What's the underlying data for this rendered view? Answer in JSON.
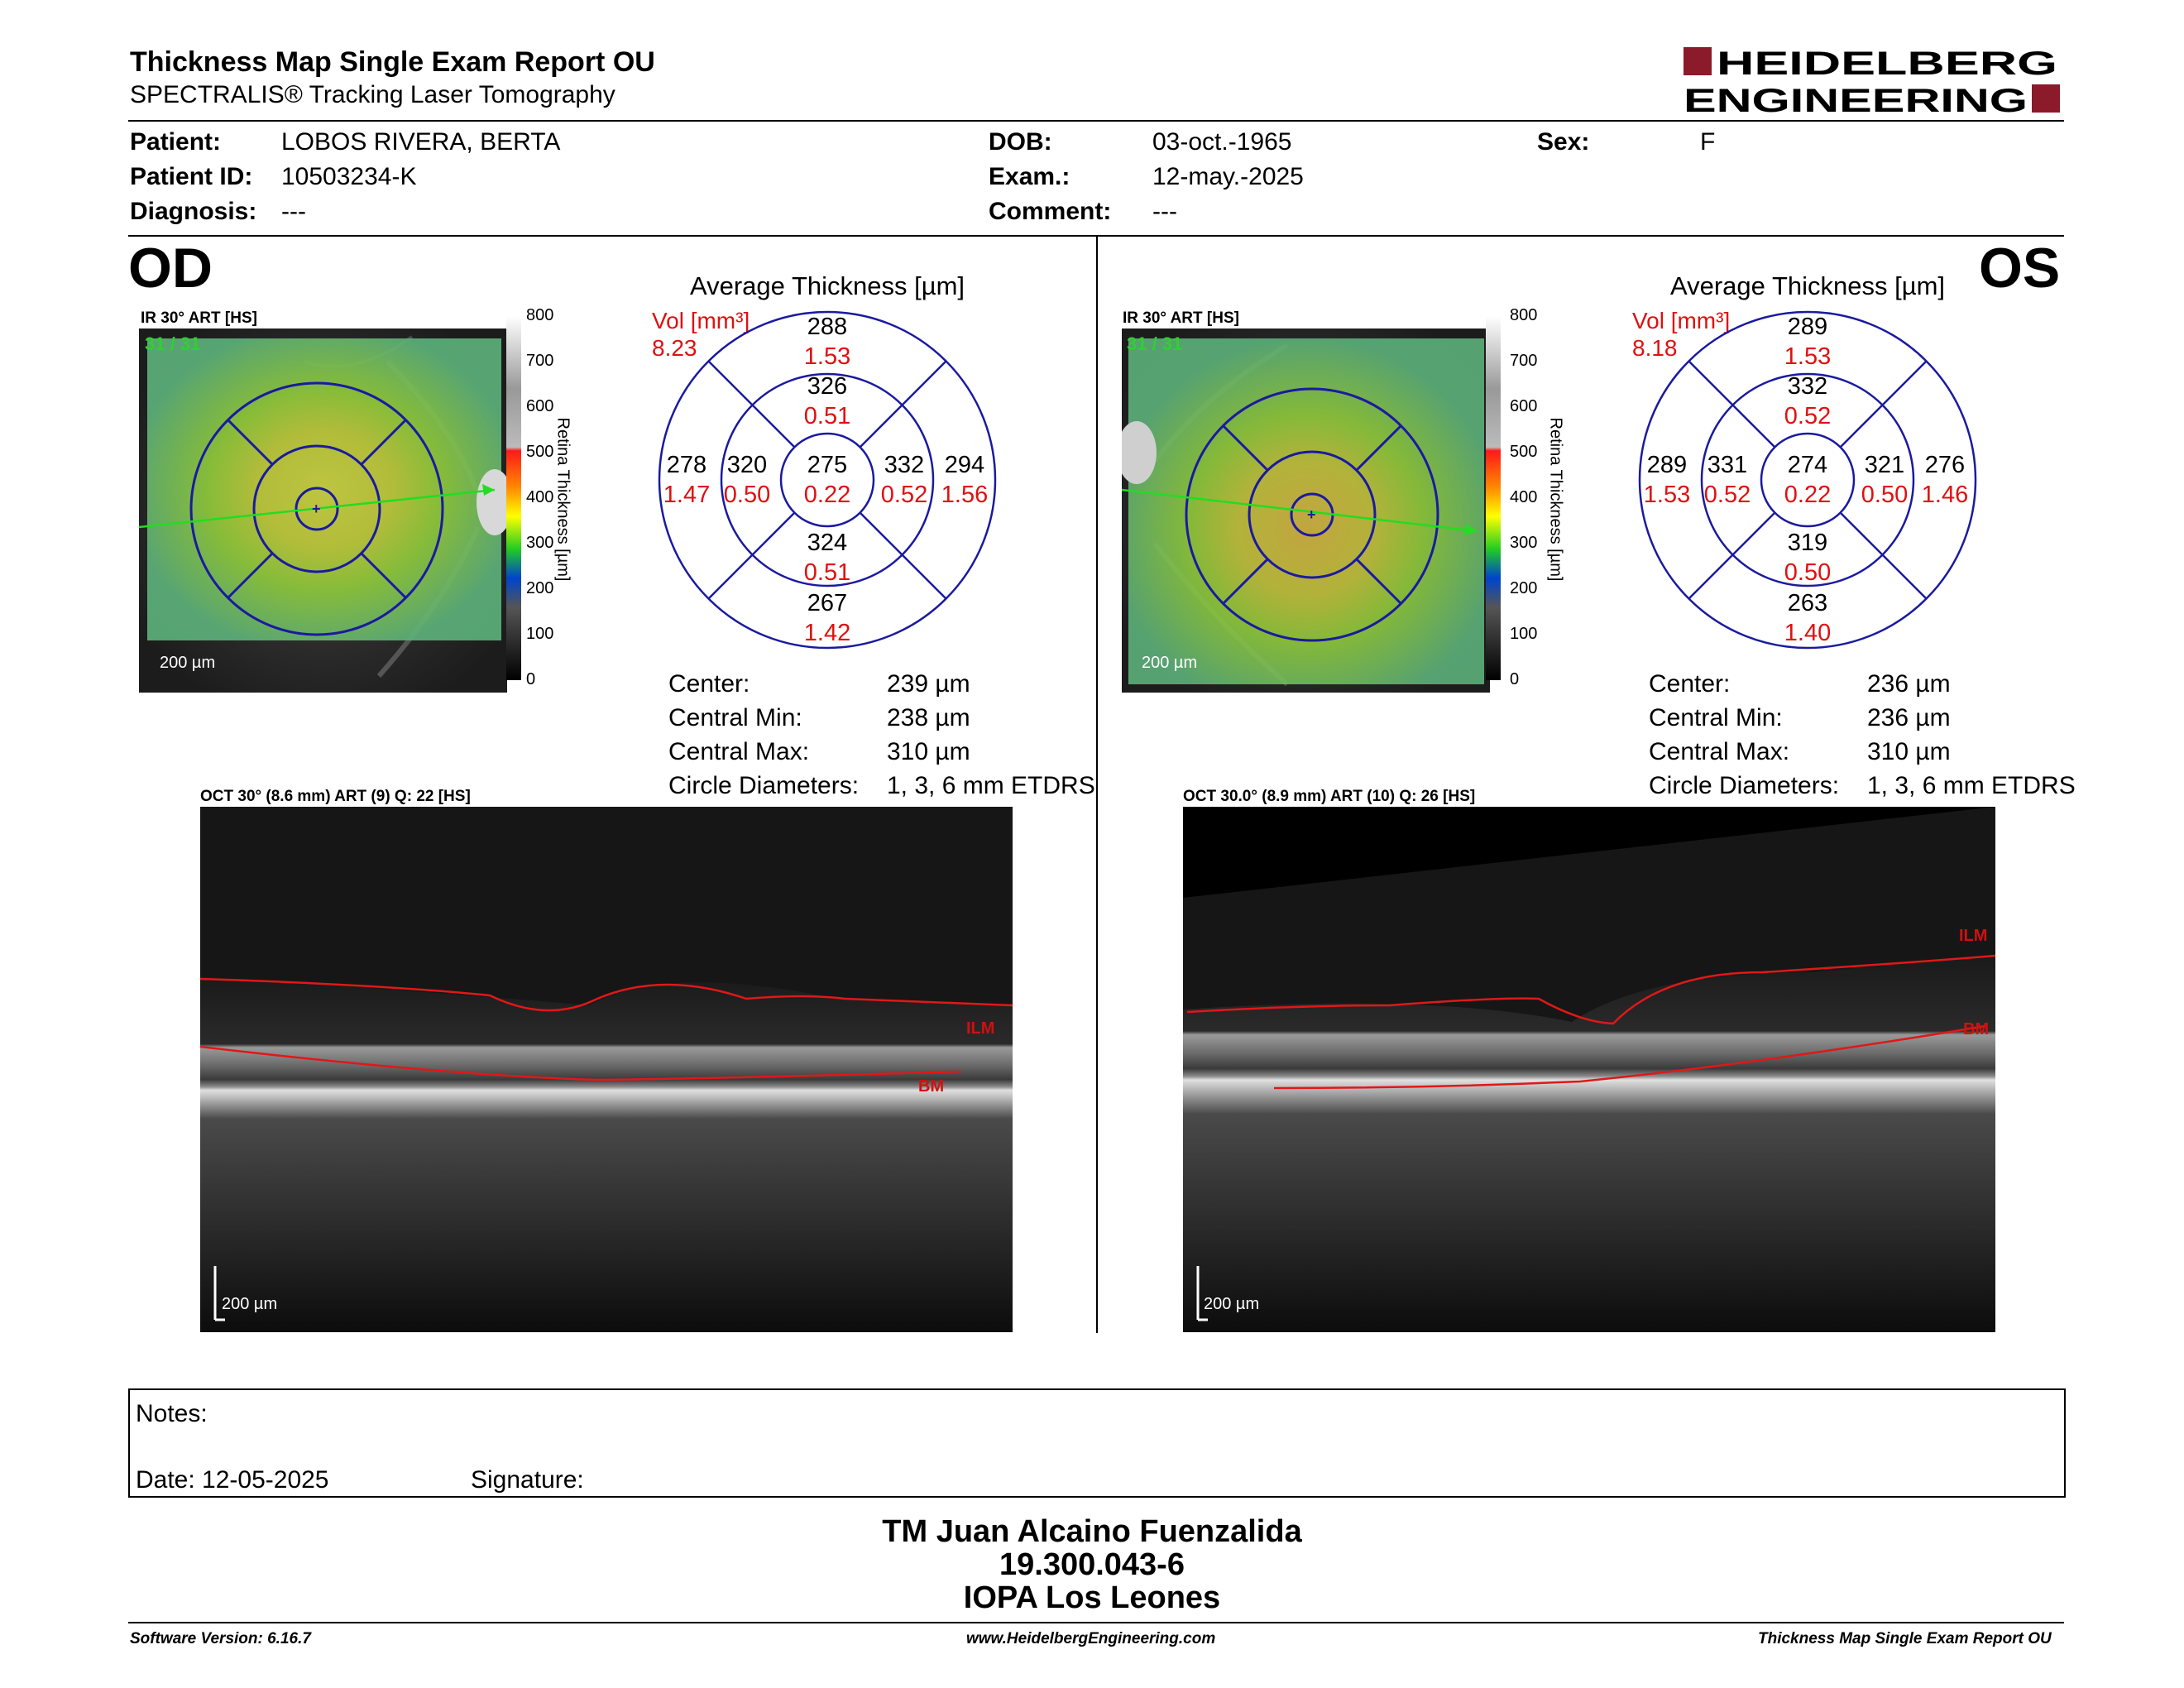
{
  "report": {
    "title": "Thickness Map Single Exam Report OU",
    "subtitle": "SPECTRALIS® Tracking Laser Tomography",
    "logo_line1": "HEIDELBERG",
    "logo_line2": "ENGINEERING"
  },
  "patient": {
    "patient_label": "Patient:",
    "patient_value": "LOBOS RIVERA, BERTA",
    "id_label": "Patient ID:",
    "id_value": "10503234-K",
    "diagnosis_label": "Diagnosis:",
    "diagnosis_value": "---",
    "dob_label": "DOB:",
    "dob_value": "03-oct.-1965",
    "exam_label": "Exam.:",
    "exam_value": "12-may.-2025",
    "comment_label": "Comment:",
    "comment_value": "---",
    "sex_label": "Sex:",
    "sex_value": "F"
  },
  "scale": {
    "ticks": [
      "800",
      "700",
      "600",
      "500",
      "400",
      "300",
      "200",
      "100",
      "0"
    ],
    "label": "Retina  Thickness [µm]"
  },
  "od": {
    "eye": "OD",
    "ir_label": "IR 30° ART [HS]",
    "ir_count": "31 / 31",
    "ir_scale": "200 µm",
    "avg_title": "Average Thickness [µm]",
    "vol_label": "Vol [mm³]",
    "vol_value": "8.23",
    "grid": {
      "outer_superior": [
        "288",
        "1.53"
      ],
      "inner_superior": [
        "326",
        "0.51"
      ],
      "outer_nasal_left": [
        "278",
        "1.47"
      ],
      "inner_left": [
        "320",
        "0.50"
      ],
      "center": [
        "275",
        "0.22"
      ],
      "inner_right": [
        "332",
        "0.52"
      ],
      "outer_right": [
        "294",
        "1.56"
      ],
      "inner_inferior": [
        "324",
        "0.51"
      ],
      "outer_inferior": [
        "267",
        "1.42"
      ]
    },
    "stats": {
      "center_label": "Center:",
      "center_value": "239 µm",
      "min_label": "Central Min:",
      "min_value": "238 µm",
      "max_label": "Central Max:",
      "max_value": "310 µm",
      "diam_label": "Circle Diameters:",
      "diam_value": "1, 3, 6 mm ETDRS"
    },
    "oct_label": "OCT 30° (8.6 mm) ART (9) Q: 22 [HS]",
    "oct_scale": "200 µm",
    "ilm": "ILM",
    "bm": "BM"
  },
  "os": {
    "eye": "OS",
    "ir_label": "IR 30° ART [HS]",
    "ir_count": "31 / 31",
    "ir_scale": "200 µm",
    "avg_title": "Average Thickness [µm]",
    "vol_label": "Vol [mm³]",
    "vol_value": "8.18",
    "grid": {
      "outer_superior": [
        "289",
        "1.53"
      ],
      "inner_superior": [
        "332",
        "0.52"
      ],
      "outer_nasal_left": [
        "289",
        "1.53"
      ],
      "inner_left": [
        "331",
        "0.52"
      ],
      "center": [
        "274",
        "0.22"
      ],
      "inner_right": [
        "321",
        "0.50"
      ],
      "outer_right": [
        "276",
        "1.46"
      ],
      "inner_inferior": [
        "319",
        "0.50"
      ],
      "outer_inferior": [
        "263",
        "1.40"
      ]
    },
    "stats": {
      "center_label": "Center:",
      "center_value": "236 µm",
      "min_label": "Central Min:",
      "min_value": "236 µm",
      "max_label": "Central Max:",
      "max_value": "310 µm",
      "diam_label": "Circle Diameters:",
      "diam_value": "1, 3, 6 mm ETDRS"
    },
    "oct_label": "OCT 30.0° (8.9 mm) ART (10) Q: 26 [HS]",
    "oct_scale": "200 µm",
    "ilm": "ILM",
    "bm": "BM"
  },
  "notes": {
    "notes_label": "Notes:",
    "date_label": "Date: 12-05-2025",
    "signature_label": "Signature:"
  },
  "signature_block": {
    "line1": "TM Juan Alcaino Fuenzalida",
    "line2": "19.300.043-6",
    "line3": "IOPA Los Leones"
  },
  "footer": {
    "software": "Software Version: 6.16.7",
    "website": "www.HeidelbergEngineering.com",
    "report_name": "Thickness Map Single Exam Report OU"
  },
  "colors": {
    "brand_red": "#8b1a2b",
    "grid_blue": "#1a1aa0",
    "value_red": "#e01010"
  }
}
